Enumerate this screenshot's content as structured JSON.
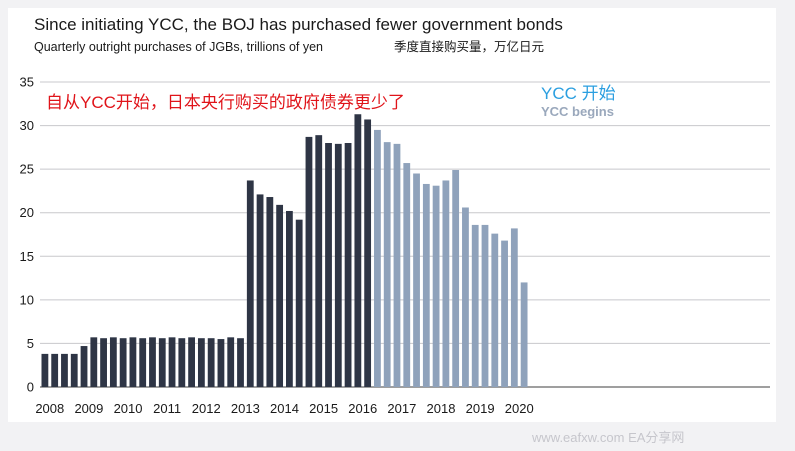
{
  "header": {
    "title": "Since initiating YCC, the BOJ has purchased fewer government bonds",
    "subtitle": "Quarterly outright purchases of JGBs, trillions of yen",
    "subtitle_cn": "季度直接购买量，万亿日元"
  },
  "annotations": {
    "red_note": "自从YCC开始，日本央行购买的政府债券更少了",
    "ycc_cn": "YCC 开始",
    "ycc_en": "YCC begins"
  },
  "watermark": "www.eafxw.com   EA分享网",
  "colors": {
    "pre_ycc": "#2e3545",
    "post_ycc": "#8fa2bb",
    "red_note": "#e0141a",
    "ycc_cn": "#2b9fe0",
    "ycc_en": "#9aa8bc",
    "grid": "#c8c8cc",
    "background": "#ffffff"
  },
  "chart_data": {
    "type": "bar",
    "title": "Since initiating YCC, the BOJ has purchased fewer government bonds",
    "subtitle": "Quarterly outright purchases of JGBs, trillions of yen",
    "ylim": [
      0,
      35
    ],
    "yticks": [
      0,
      5,
      10,
      15,
      20,
      25,
      30,
      35
    ],
    "xticks": [
      "2008",
      "2009",
      "2010",
      "2011",
      "2012",
      "2013",
      "2014",
      "2015",
      "2016",
      "2017",
      "2018",
      "2019",
      "2020"
    ],
    "grid": "horizontal",
    "series": [
      {
        "values": [
          3.8,
          3.8,
          3.8,
          3.8,
          4.7,
          5.7,
          5.6,
          5.7,
          5.6,
          5.7,
          5.6,
          5.7,
          5.6,
          5.7,
          5.6,
          5.7,
          5.6,
          5.6,
          5.5,
          5.7,
          5.6,
          23.7,
          22.1,
          21.8,
          20.9,
          20.2,
          19.2,
          28.7,
          28.9,
          28.0,
          27.9,
          28.0,
          31.3,
          30.7
        ]
      },
      {
        "values": [
          29.5,
          28.1,
          27.9,
          25.7,
          24.5,
          23.3,
          23.1,
          23.7,
          24.9,
          20.6,
          18.6,
          18.6,
          17.6,
          16.8,
          18.2,
          12.0
        ]
      }
    ]
  }
}
